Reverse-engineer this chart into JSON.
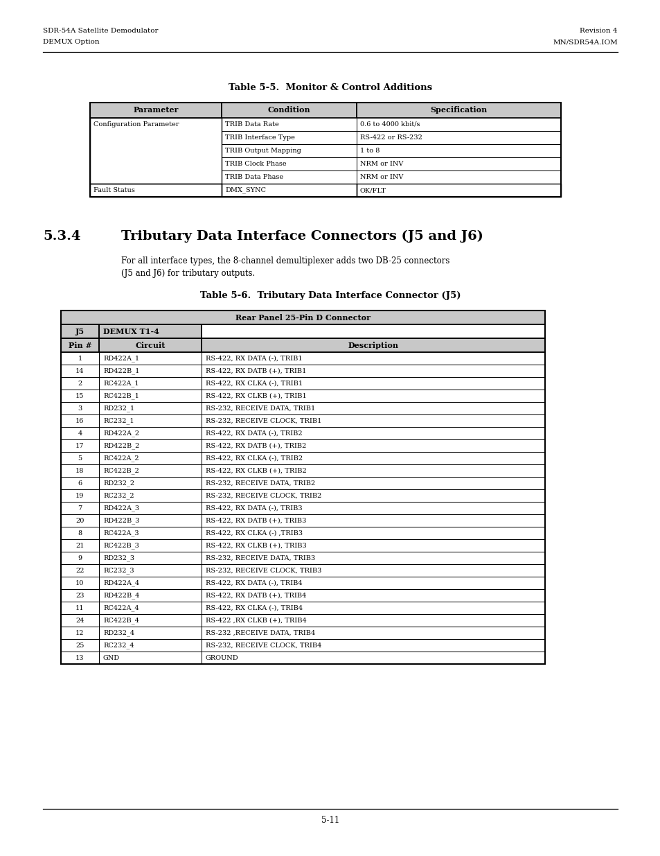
{
  "page_title_left": [
    "SDR-54A Satellite Demodulator",
    "DEMUX Option"
  ],
  "page_title_right": [
    "Revision 4",
    "MN/SDR54A.IOM"
  ],
  "table1_title": "Table 5-5.  Monitor & Control Additions",
  "table1_headers": [
    "Parameter",
    "Condition",
    "Specification"
  ],
  "table1_cond_rows": [
    "TRIB Data Rate",
    "TRIB Interface Type",
    "TRIB Output Mapping",
    "TRIB Clock Phase",
    "TRIB Data Phase"
  ],
  "table1_spec_rows": [
    "0.6 to 4000 kbit/s",
    "RS-422 or RS-232",
    "1 to 8",
    "NRM or INV",
    "NRM or INV"
  ],
  "table1_fault_cond": "DMX_SYNC",
  "table1_fault_spec": "OK/FLT",
  "section_number": "5.3.4",
  "section_title": "Tributary Data Interface Connectors (J5 and J6)",
  "section_body_line1": "For all interface types, the 8-channel demultiplexer adds two DB-25 connectors",
  "section_body_line2": "(J5 and J6) for tributary outputs.",
  "table2_title": "Table 5-6.  Tributary Data Interface Connector (J5)",
  "table2_span_header": "Rear Panel 25-Pin D Connector",
  "table2_rows": [
    [
      "1",
      "RD422A_1",
      "RS-422, RX DATA (-), TRIB1"
    ],
    [
      "14",
      "RD422B_1",
      "RS-422, RX DATB (+), TRIB1"
    ],
    [
      "2",
      "RC422A_1",
      "RS-422, RX CLKA (-), TRIB1"
    ],
    [
      "15",
      "RC422B_1",
      "RS-422, RX CLKB (+), TRIB1"
    ],
    [
      "3",
      "RD232_1",
      "RS-232, RECEIVE DATA, TRIB1"
    ],
    [
      "16",
      "RC232_1",
      "RS-232, RECEIVE CLOCK, TRIB1"
    ],
    [
      "4",
      "RD422A_2",
      "RS-422, RX DATA (-), TRIB2"
    ],
    [
      "17",
      "RD422B_2",
      "RS-422, RX DATB (+), TRIB2"
    ],
    [
      "5",
      "RC422A_2",
      "RS-422, RX CLKA (-), TRIB2"
    ],
    [
      "18",
      "RC422B_2",
      "RS-422, RX CLKB (+), TRIB2"
    ],
    [
      "6",
      "RD232_2",
      "RS-232, RECEIVE DATA, TRIB2"
    ],
    [
      "19",
      "RC232_2",
      "RS-232, RECEIVE CLOCK, TRIB2"
    ],
    [
      "7",
      "RD422A_3",
      "RS-422, RX DATA (-), TRIB3"
    ],
    [
      "20",
      "RD422B_3",
      "RS-422, RX DATB (+), TRIB3"
    ],
    [
      "8",
      "RC422A_3",
      "RS-422, RX CLKA (-) ,TRIB3"
    ],
    [
      "21",
      "RC422B_3",
      "RS-422, RX CLKB (+), TRIB3"
    ],
    [
      "9",
      "RD232_3",
      "RS-232, RECEIVE DATA, TRIB3"
    ],
    [
      "22",
      "RC232_3",
      "RS-232, RECEIVE CLOCK, TRIB3"
    ],
    [
      "10",
      "RD422A_4",
      "RS-422, RX DATA (-), TRIB4"
    ],
    [
      "23",
      "RD422B_4",
      "RS-422, RX DATB (+), TRIB4"
    ],
    [
      "11",
      "RC422A_4",
      "RS-422, RX CLKA (-), TRIB4"
    ],
    [
      "24",
      "RC422B_4",
      "RS-422 ,RX CLKB (+), TRIB4"
    ],
    [
      "12",
      "RD232_4",
      "RS-232 ,RECEIVE DATA, TRIB4"
    ],
    [
      "25",
      "RC232_4",
      "RS-232, RECEIVE CLOCK, TRIB4"
    ],
    [
      "13",
      "GND",
      "GROUND"
    ]
  ],
  "page_number": "5-11",
  "bg_color": "#ffffff",
  "header_bg": "#c8c8c8",
  "table_border": "#000000",
  "text_color": "#000000",
  "font": "serif",
  "header_fontsize": 8.0,
  "body_fontsize": 7.5,
  "small_fontsize": 7.0,
  "title_fontsize": 9.5,
  "section_num_fontsize": 14.0,
  "section_title_fontsize": 14.0,
  "page_header_fontsize": 7.5
}
